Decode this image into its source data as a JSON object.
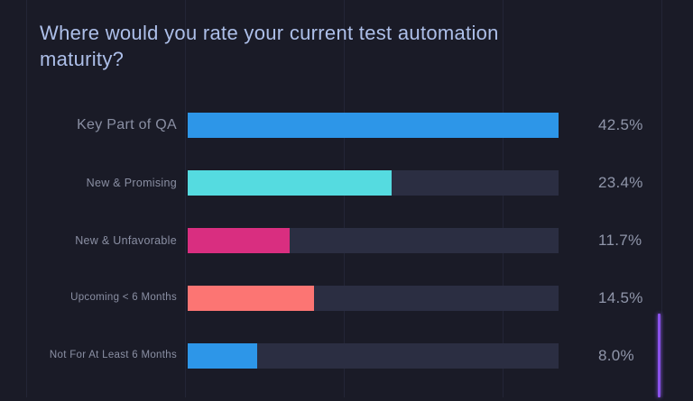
{
  "title": "Where would you rate your current test automation maturity?",
  "chart_data": {
    "type": "bar",
    "orientation": "horizontal",
    "title": "Where would you rate your current test automation maturity?",
    "categories": [
      "Key Part of QA",
      "New & Promising",
      "New & Unfavorable",
      "Upcoming < 6 Months",
      "Not For At Least 6 Months"
    ],
    "values": [
      42.5,
      23.4,
      11.7,
      14.5,
      8.0
    ],
    "value_labels": [
      "42.5%",
      "23.4%",
      "11.7%",
      "14.5%",
      "8.0%"
    ],
    "bar_colors": [
      "#2D96E8",
      "#55DBE0",
      "#D92E80",
      "#FC7573",
      "#2D96E8"
    ],
    "max_value": 42.5,
    "xlim": [
      0,
      42.5
    ],
    "grid": "faint vertical gridlines",
    "legend": "none",
    "value_label_position": "right of track"
  },
  "colors": {
    "background": "#1A1B27",
    "title_text": "#ADBFE9",
    "category_text": "#8A8FA3",
    "value_text": "#9096AA",
    "bar_track": "#2B2E42",
    "gridline": "#232536",
    "accent_line": "#8B52EC"
  }
}
